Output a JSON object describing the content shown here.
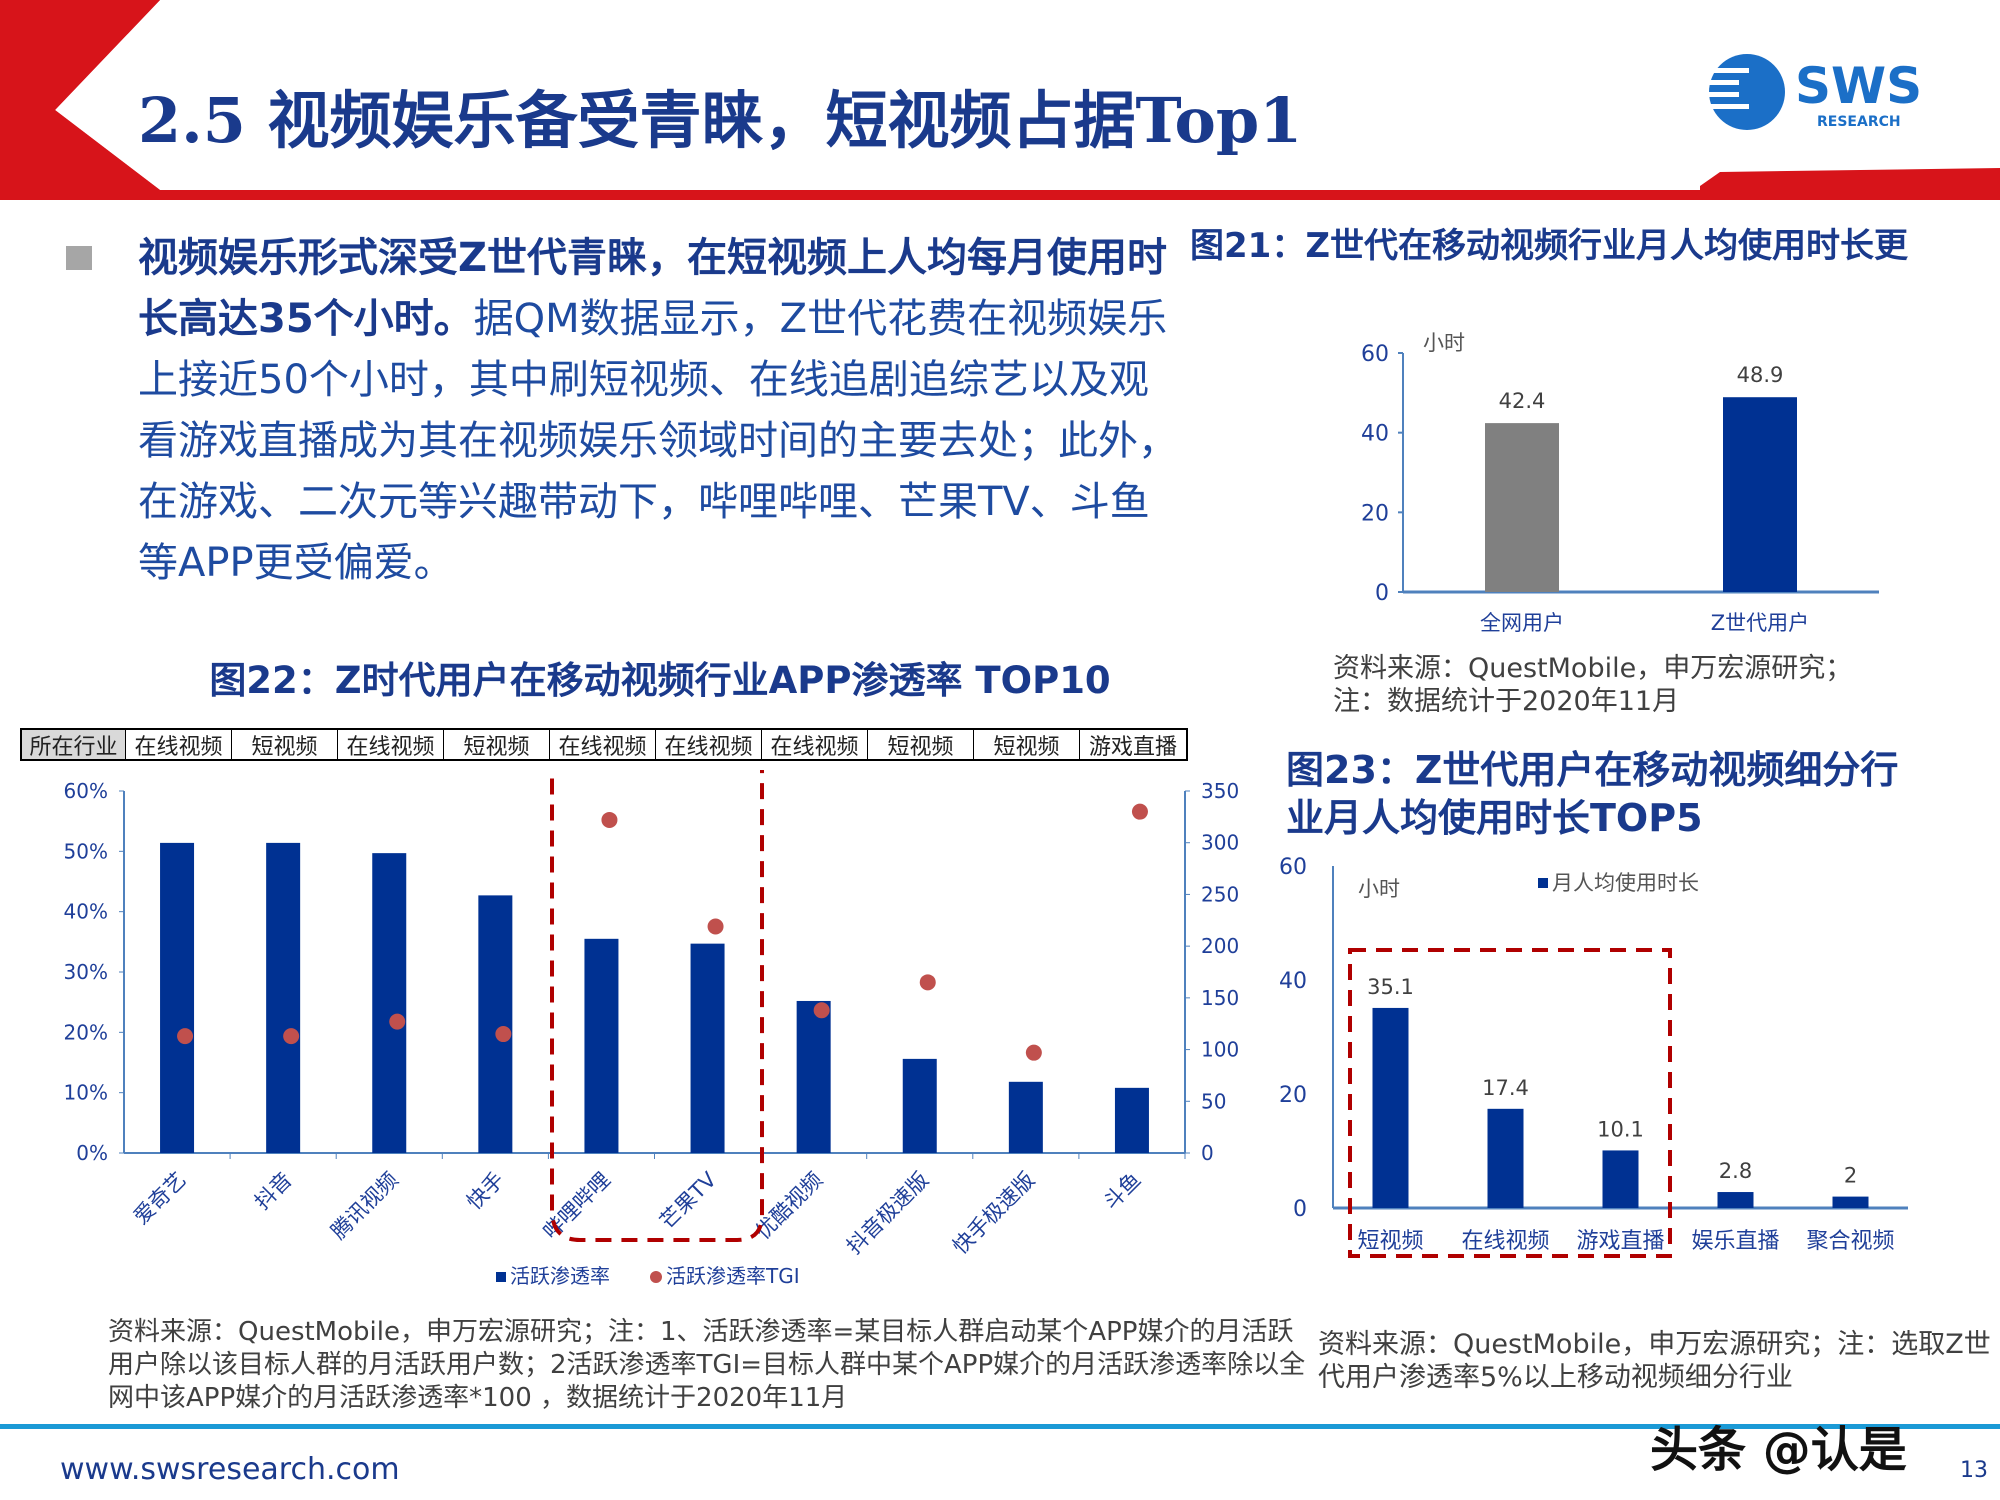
{
  "header": {
    "title": "2.5 视频娱乐备受青睐，短视频占据Top1",
    "logo_text": "SWS",
    "logo_sub": "RESEARCH"
  },
  "body": {
    "bold": "视频娱乐形式深受Z世代青睐，在短视频上人均每月使用时长高达35个小时。",
    "text": "据QM数据显示，Z世代花费在视频娱乐上接近50个小时，其中刷短视频、在线追剧追综艺以及观看游戏直播成为其在视频娱乐领域时间的主要去处；此外，在游戏、二次元等兴趣带动下，哔哩哔哩、芒果TV、斗鱼等APP更受偏爱。"
  },
  "fig21": {
    "title": "图21：Z世代在移动视频行业月人均使用时长更",
    "source1": "资料来源：QuestMobile，申万宏源研究；",
    "source2": "注：数据统计于2020年11月"
  },
  "fig22": {
    "title": "图22：Z时代用户在移动视频行业APP渗透率 TOP10",
    "industry_header": "所在行业",
    "industries": [
      "在线视频",
      "短视频",
      "在线视频",
      "短视频",
      "在线视频",
      "在线视频",
      "在线视频",
      "短视频",
      "短视频",
      "游戏直播"
    ],
    "source": "资料来源：QuestMobile，申万宏源研究；注：1、活跃渗透率=某目标人群启动某个APP媒介的月活跃用户除以该目标人群的月活跃用户数；2活跃渗透率TGI=目标人群中某个APP媒介的月活跃渗透率除以全网中该APP媒介的月活跃渗透率*100 ，数据统计于2020年11月"
  },
  "fig23": {
    "title1": "图23：Z世代用户在移动视频细分行",
    "title2": "业月人均使用时长TOP5",
    "source": "资料来源：QuestMobile，申万宏源研究；注：选取Z世代用户渗透率5%以上移动视频细分行业"
  },
  "footer": {
    "url": "www.swsresearch.com",
    "page": "13",
    "watermark": "头条 @认是"
  },
  "colors": {
    "brand_red": "#d7141a",
    "navy": "#1a3a8c",
    "bar_blue": "#003192",
    "bar_gray": "#808080",
    "dot_red": "#c0504d",
    "axis": "#4f81bd",
    "footer_blue": "#1b9ad6"
  },
  "chart_data": [
    {
      "type": "bar",
      "categories": [
        "全网用户",
        "Z世代用户"
      ],
      "values": [
        42.4,
        48.9
      ],
      "ylabel": "小时",
      "ylim": [
        0,
        60
      ],
      "yticks": [
        0,
        20,
        40,
        60
      ],
      "colors": [
        "#808080",
        "#003192"
      ]
    },
    {
      "type": "bar+scatter",
      "categories": [
        "爱奇艺",
        "抖音",
        "腾讯视频",
        "快手",
        "哔哩哔哩",
        "芒果TV",
        "优酷视频",
        "抖音极速版",
        "快手极速版",
        "斗鱼"
      ],
      "series": [
        {
          "name": "活跃渗透率",
          "type": "bar",
          "axis": "left",
          "values": [
            51.4,
            51.4,
            49.7,
            42.7,
            35.5,
            34.7,
            25.2,
            15.6,
            11.8,
            10.8
          ]
        },
        {
          "name": "活跃渗透率TGI",
          "type": "scatter",
          "axis": "right",
          "values": [
            113,
            113,
            127,
            115,
            322,
            219,
            138,
            165,
            97,
            330
          ]
        }
      ],
      "ylim_left": [
        0,
        60
      ],
      "yticks_left": [
        "0%",
        "10%",
        "20%",
        "30%",
        "40%",
        "50%",
        "60%"
      ],
      "ylim_right": [
        0,
        350
      ],
      "yticks_right": [
        0,
        50,
        100,
        150,
        200,
        250,
        300,
        350
      ],
      "legend": "bottom",
      "highlight": [
        "哔哩哔哩",
        "芒果TV"
      ]
    },
    {
      "type": "bar",
      "categories": [
        "短视频",
        "在线视频",
        "游戏直播",
        "娱乐直播",
        "聚合视频"
      ],
      "series": [
        {
          "name": "月人均使用时长",
          "values": [
            35.1,
            17.4,
            10.1,
            2.8,
            2
          ]
        }
      ],
      "ylabel": "小时",
      "ylim": [
        0,
        60
      ],
      "yticks": [
        0,
        20,
        40,
        60
      ],
      "legend": "top",
      "highlight": [
        "短视频",
        "在线视频",
        "游戏直播"
      ]
    }
  ]
}
